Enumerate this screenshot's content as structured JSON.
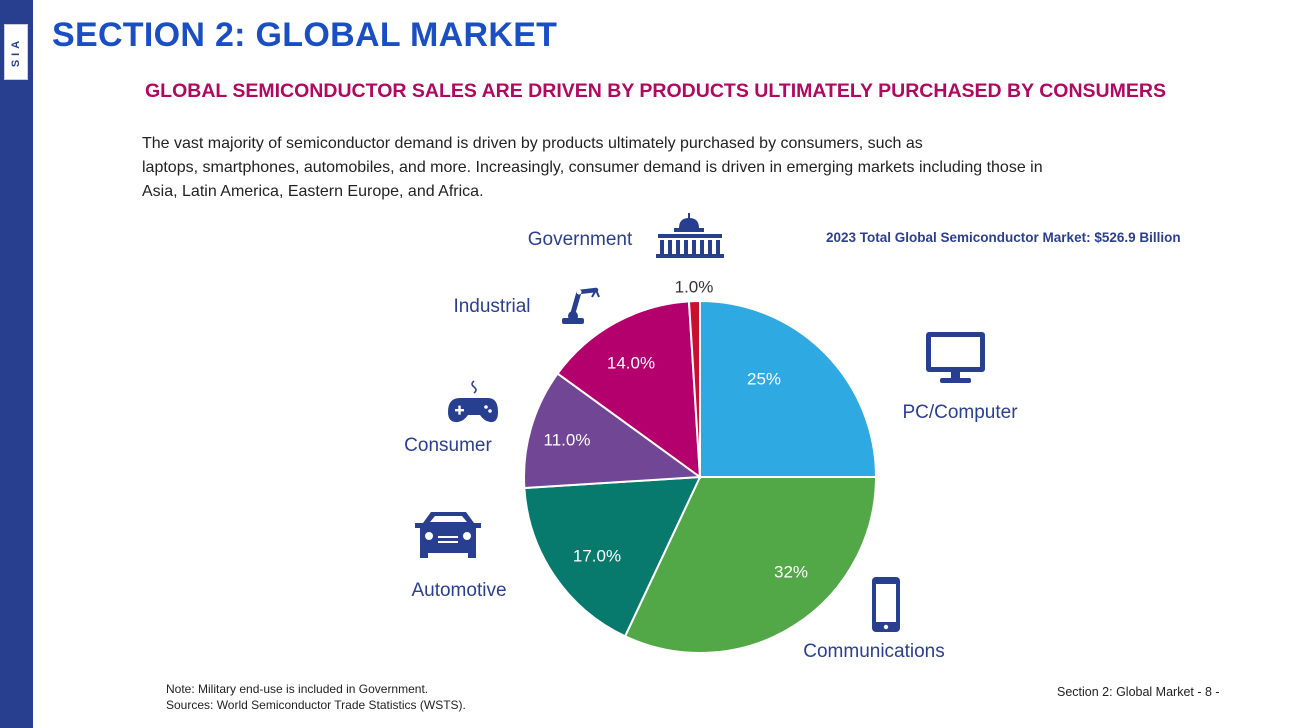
{
  "brand": {
    "logo_text": "SIA"
  },
  "header": {
    "title": "SECTION 2: GLOBAL MARKET",
    "subtitle": "GLOBAL SEMICONDUCTOR SALES ARE DRIVEN BY PRODUCTS ULTIMATELY PURCHASED BY CONSUMERS"
  },
  "intro": {
    "line1": "The vast majority of semiconductor demand is driven by products ultimately purchased by consumers, such as",
    "line2": "laptops, smartphones, automobiles, and more. Increasingly, consumer demand is driven in emerging markets including those in",
    "line3": "Asia, Latin America, Eastern Europe, and Africa."
  },
  "market_total": "2023 Total Global Semiconductor Market: $526.9 Billion",
  "colors": {
    "accent_blue": "#1a4fc4",
    "navy": "#283e8f",
    "magenta_heading": "#b0095f",
    "category_label": "#2b3f91"
  },
  "chart_data": {
    "type": "pie",
    "title": "2023 Total Global Semiconductor Market: $526.9 Billion",
    "start": "12 o'clock, clockwise",
    "slices": [
      {
        "label": "PC/Computer",
        "value": 25,
        "value_label": "25%",
        "color": "#2fa9e1",
        "icon": "monitor-icon"
      },
      {
        "label": "Communications",
        "value": 32,
        "value_label": "32%",
        "color": "#52a846",
        "icon": "smartphone-icon"
      },
      {
        "label": "Automotive",
        "value": 17,
        "value_label": "17.0%",
        "color": "#077a6d",
        "icon": "car-icon"
      },
      {
        "label": "Consumer",
        "value": 11,
        "value_label": "11.0%",
        "color": "#704695",
        "icon": "gamepad-icon"
      },
      {
        "label": "Industrial",
        "value": 14,
        "value_label": "14.0%",
        "color": "#b3006c",
        "icon": "robot-arm-icon"
      },
      {
        "label": "Government",
        "value": 1,
        "value_label": "1.0%",
        "color": "#c8102e",
        "icon": "capitol-icon"
      }
    ]
  },
  "footer": {
    "note": "Note: Military end-use is included in Government.",
    "sources": "Sources: World Semiconductor Trade Statistics (WSTS).",
    "page": "Section 2: Global Market - 8 -"
  }
}
